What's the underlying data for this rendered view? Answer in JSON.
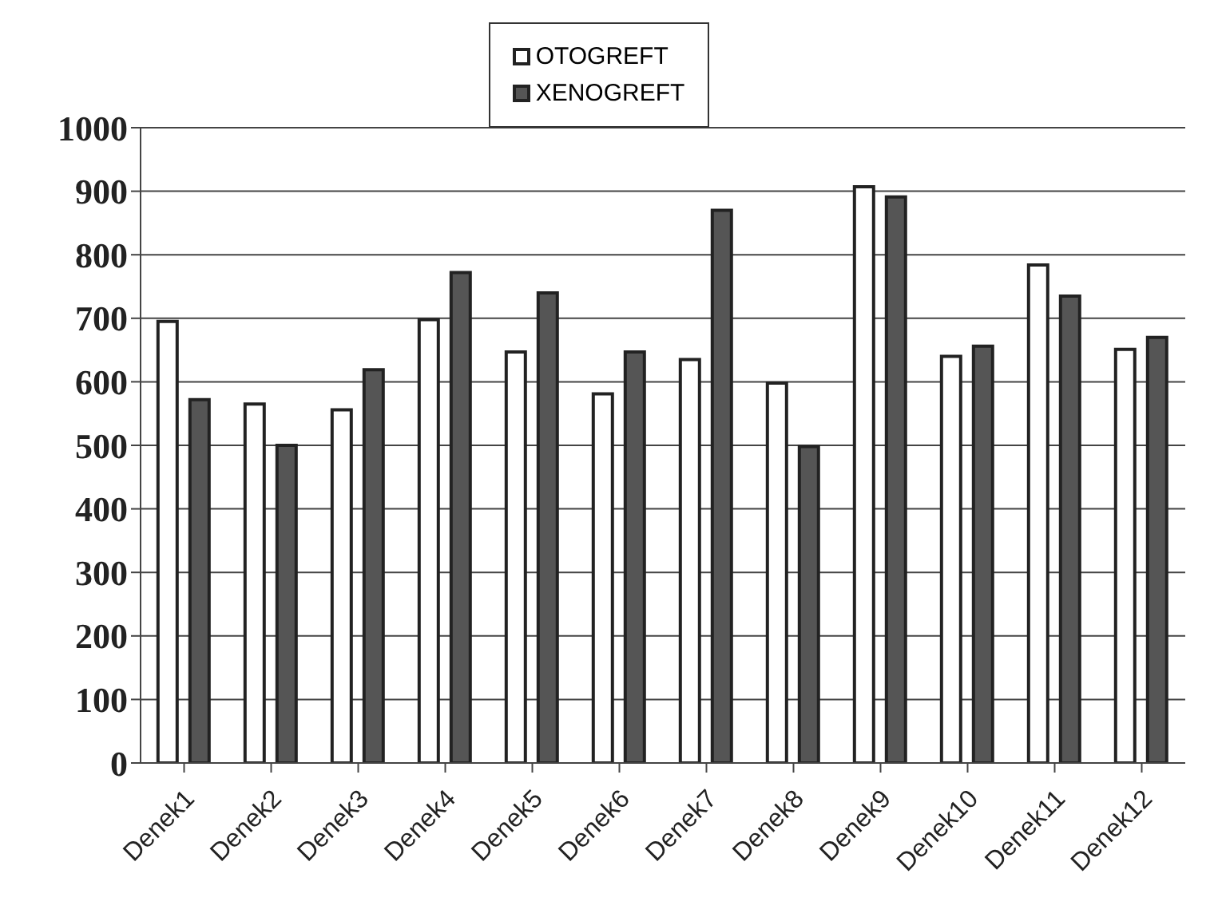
{
  "chart_data": {
    "type": "bar",
    "categories": [
      "Denek1",
      "Denek2",
      "Denek3",
      "Denek4",
      "Denek5",
      "Denek6",
      "Denek7",
      "Denek8",
      "Denek9",
      "Denek10",
      "Denek11",
      "Denek12"
    ],
    "series": [
      {
        "name": "OTOGREFT",
        "color": "#ffffff",
        "values": [
          695,
          565,
          556,
          698,
          647,
          581,
          635,
          598,
          907,
          640,
          784,
          651
        ]
      },
      {
        "name": "XENOGREFT",
        "color": "#555555",
        "values": [
          572,
          500,
          619,
          772,
          740,
          647,
          870,
          498,
          891,
          656,
          735,
          670
        ]
      }
    ],
    "ylim": [
      0,
      1000
    ],
    "yticks": [
      0,
      100,
      200,
      300,
      400,
      500,
      600,
      700,
      800,
      900,
      1000
    ],
    "grid": "y",
    "legend": "top"
  }
}
